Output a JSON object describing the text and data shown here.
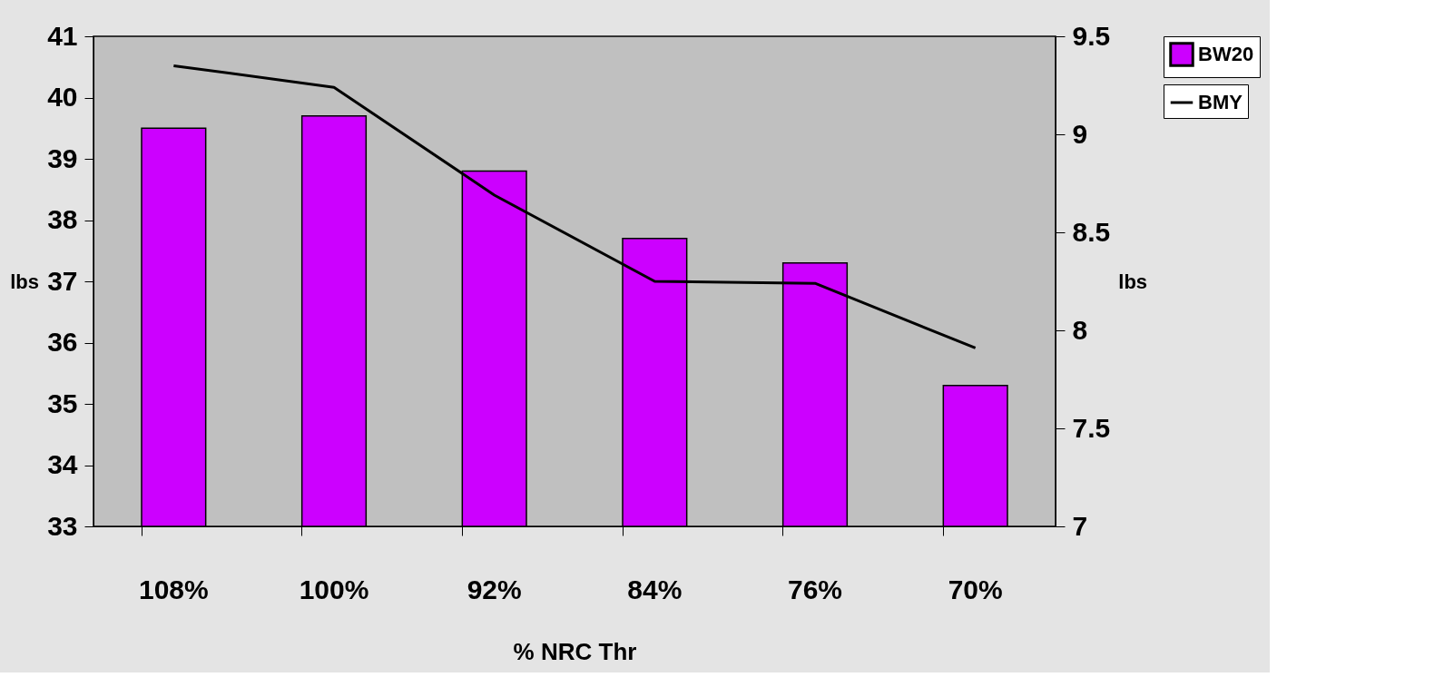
{
  "chart_data": {
    "type": "bar",
    "xlabel": "% NRC Thr",
    "ylabel": "lbs",
    "y2label": "lbs",
    "categories": [
      "108%",
      "100%",
      "92%",
      "84%",
      "76%",
      "70%"
    ],
    "series": [
      {
        "name": "BW20",
        "color": "#cc00ff",
        "values": [
          39.5,
          39.7,
          38.8,
          37.7,
          37.3,
          35.3
        ]
      },
      {
        "name": "BMY",
        "type": "line",
        "axis": "y2",
        "color": "#000000",
        "values": [
          9.35,
          9.24,
          8.69,
          8.25,
          8.24,
          7.91
        ]
      }
    ],
    "ylim": [
      33,
      41
    ],
    "yticks": [
      33,
      34,
      35,
      36,
      37,
      38,
      39,
      40,
      41
    ],
    "y2lim": [
      7,
      9.5
    ],
    "y2ticks": [
      7,
      7.5,
      8,
      8.5,
      9,
      9.5
    ],
    "grid": false,
    "legend": "right",
    "marker": "none"
  }
}
